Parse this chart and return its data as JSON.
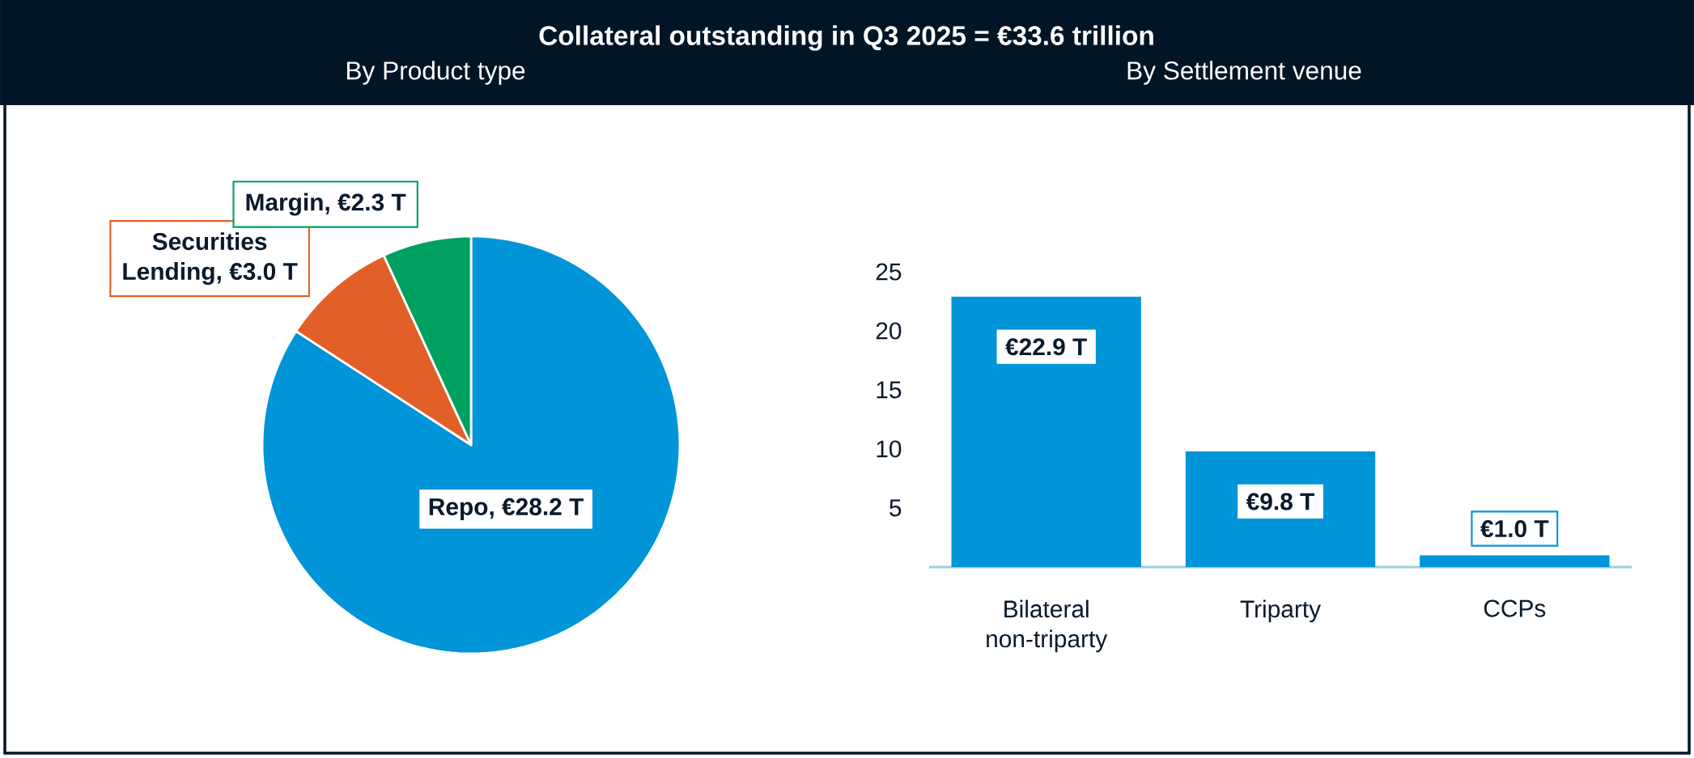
{
  "chart_data": [
    {
      "type": "pie",
      "title": "Collateral outstanding in Q3 2025 = €33.6 trillion",
      "subtitle": "By Product type",
      "categories": [
        "Repo, €28.2 T",
        "Securities Lending, €3.0 T",
        "Margin, €2.3 T"
      ],
      "values": [
        28.2,
        3.0,
        2.3
      ],
      "colors": [
        "#0094d8",
        "#e35f28",
        "#00a060"
      ]
    },
    {
      "type": "bar",
      "subtitle": "By Settlement venue",
      "categories": [
        "Bilateral non-triparty",
        "Triparty",
        "CCPs"
      ],
      "values": [
        22.9,
        9.8,
        1.0
      ],
      "color": "#0094d8",
      "ylim": [
        0,
        25
      ],
      "yticks": [
        5,
        10,
        15,
        20,
        25
      ],
      "value_labels": [
        "€22.9 T",
        "€9.8 T",
        "€1.0 T"
      ]
    }
  ]
}
